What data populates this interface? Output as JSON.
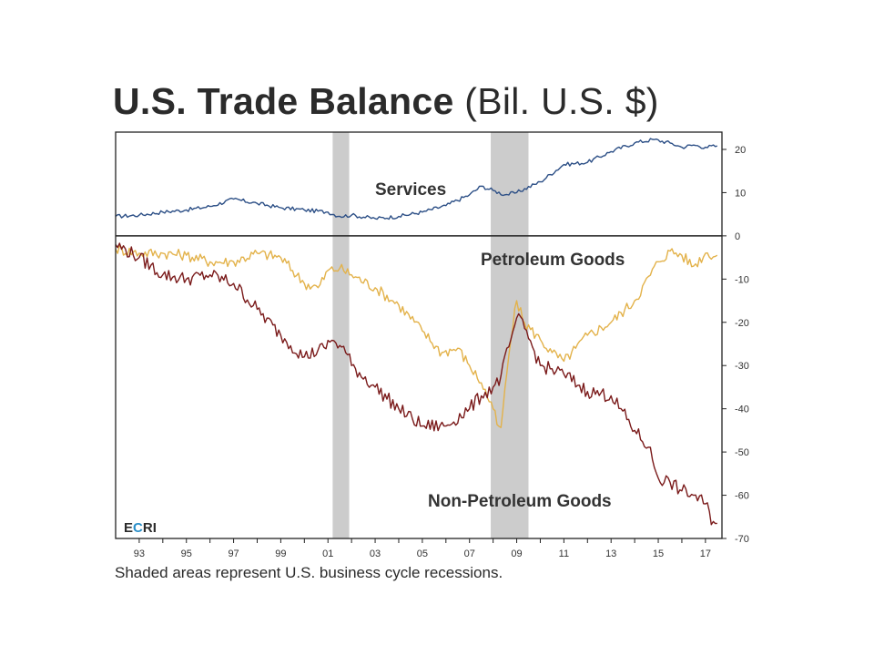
{
  "title": {
    "main": "U.S. Trade Balance",
    "sub": "(Bil. U.S. $)"
  },
  "caption": "Shaded areas represent U.S. business cycle recessions.",
  "logo": {
    "text_e": "E",
    "text_c": "C",
    "text_ri": "RI",
    "accent_color": "#2a8fc9",
    "dark_color": "#2b2b2b"
  },
  "colors": {
    "services": "#2c4f86",
    "petroleum": "#e3b24a",
    "non_petroleum": "#7a1a1a",
    "recession": "#cccccc"
  },
  "chart_data": {
    "type": "line",
    "title": "U.S. Trade Balance (Bil. U.S. $)",
    "x_range": [
      1992.0,
      2017.7
    ],
    "y_range": [
      -70,
      24
    ],
    "x_tick_labels": [
      {
        "label": "93",
        "year": 1993
      },
      {
        "label": "95",
        "year": 1995
      },
      {
        "label": "97",
        "year": 1997
      },
      {
        "label": "99",
        "year": 1999
      },
      {
        "label": "01",
        "year": 2001
      },
      {
        "label": "03",
        "year": 2003
      },
      {
        "label": "05",
        "year": 2005
      },
      {
        "label": "07",
        "year": 2007
      },
      {
        "label": "09",
        "year": 2009
      },
      {
        "label": "11",
        "year": 2011
      },
      {
        "label": "13",
        "year": 2013
      },
      {
        "label": "15",
        "year": 2015
      },
      {
        "label": "17",
        "year": 2017
      }
    ],
    "y_tick_labels": [
      "20",
      "10",
      "0",
      "-10",
      "-20",
      "-30",
      "-40",
      "-50",
      "-60",
      "-70"
    ],
    "y_tick_values": [
      20,
      10,
      0,
      -10,
      -20,
      -30,
      -40,
      -50,
      -60,
      -70
    ],
    "recessions": [
      {
        "start": 2001.2,
        "end": 2001.9
      },
      {
        "start": 2007.9,
        "end": 2009.5
      }
    ],
    "series": [
      {
        "name": "Services",
        "label_position": "upper-middle",
        "points": [
          [
            1992.0,
            4.5
          ],
          [
            1993,
            4.8
          ],
          [
            1994,
            5.5
          ],
          [
            1995,
            6.0
          ],
          [
            1996,
            6.8
          ],
          [
            1997,
            8.5
          ],
          [
            1998,
            7.5
          ],
          [
            1999,
            6.5
          ],
          [
            2000,
            6.0
          ],
          [
            2001,
            5.5
          ],
          [
            2001.5,
            4.5
          ],
          [
            2002,
            4.8
          ],
          [
            2003,
            4.0
          ],
          [
            2004,
            4.5
          ],
          [
            2005,
            5.5
          ],
          [
            2006,
            7.0
          ],
          [
            2007,
            9.5
          ],
          [
            2007.5,
            11.5
          ],
          [
            2008,
            10.5
          ],
          [
            2008.5,
            9.5
          ],
          [
            2009,
            10.0
          ],
          [
            2010,
            12.5
          ],
          [
            2011,
            16.5
          ],
          [
            2012,
            17.0
          ],
          [
            2013,
            19.5
          ],
          [
            2014,
            21.5
          ],
          [
            2014.8,
            22.3
          ],
          [
            2015.5,
            21.5
          ],
          [
            2016,
            20.5
          ],
          [
            2016.5,
            21.0
          ],
          [
            2017,
            20.5
          ],
          [
            2017.5,
            20.8
          ]
        ]
      },
      {
        "name": "Petroleum Goods",
        "label_position": "top-right",
        "points": [
          [
            1992.0,
            -3
          ],
          [
            1993,
            -4
          ],
          [
            1994,
            -4
          ],
          [
            1995,
            -4.5
          ],
          [
            1996,
            -6
          ],
          [
            1997,
            -6
          ],
          [
            1998,
            -4
          ],
          [
            1999,
            -5
          ],
          [
            2000,
            -11
          ],
          [
            2000.6,
            -12
          ],
          [
            2001,
            -8
          ],
          [
            2001.5,
            -7.5
          ],
          [
            2002,
            -9
          ],
          [
            2003,
            -12
          ],
          [
            2004,
            -16
          ],
          [
            2005,
            -22
          ],
          [
            2005.8,
            -27
          ],
          [
            2006.5,
            -26
          ],
          [
            2007,
            -30
          ],
          [
            2007.5,
            -34
          ],
          [
            2008,
            -40
          ],
          [
            2008.3,
            -46
          ],
          [
            2008.7,
            -26
          ],
          [
            2009,
            -15
          ],
          [
            2009.3,
            -20
          ],
          [
            2010,
            -24
          ],
          [
            2010.5,
            -27
          ],
          [
            2011,
            -29
          ],
          [
            2011.5,
            -26
          ],
          [
            2012,
            -23
          ],
          [
            2013,
            -20
          ],
          [
            2014,
            -15
          ],
          [
            2015,
            -6
          ],
          [
            2015.5,
            -3.5
          ],
          [
            2016,
            -4.5
          ],
          [
            2016.5,
            -7
          ],
          [
            2017,
            -4
          ],
          [
            2017.5,
            -4.5
          ]
        ]
      },
      {
        "name": "Non-Petroleum Goods",
        "label_position": "lower-right",
        "points": [
          [
            1992.0,
            -2
          ],
          [
            1993,
            -5
          ],
          [
            1994,
            -9
          ],
          [
            1995,
            -10
          ],
          [
            1996,
            -9
          ],
          [
            1997,
            -11
          ],
          [
            1998,
            -17
          ],
          [
            1999,
            -23
          ],
          [
            2000,
            -28
          ],
          [
            2000.8,
            -26
          ],
          [
            2001.2,
            -24
          ],
          [
            2001.8,
            -27
          ],
          [
            2002,
            -30
          ],
          [
            2003,
            -35
          ],
          [
            2004,
            -40
          ],
          [
            2005,
            -44
          ],
          [
            2006,
            -44
          ],
          [
            2007,
            -40
          ],
          [
            2007.5,
            -37
          ],
          [
            2008,
            -35
          ],
          [
            2008.3,
            -33
          ],
          [
            2008.7,
            -25
          ],
          [
            2009,
            -19
          ],
          [
            2009.3,
            -21
          ],
          [
            2010,
            -30
          ],
          [
            2011,
            -32
          ],
          [
            2012,
            -36
          ],
          [
            2013,
            -37
          ],
          [
            2014,
            -45
          ],
          [
            2014.6,
            -49
          ],
          [
            2015,
            -56
          ],
          [
            2015.5,
            -57
          ],
          [
            2016,
            -59
          ],
          [
            2016.5,
            -60
          ],
          [
            2017,
            -62
          ],
          [
            2017.3,
            -66
          ],
          [
            2017.5,
            -66.5
          ]
        ]
      }
    ]
  }
}
